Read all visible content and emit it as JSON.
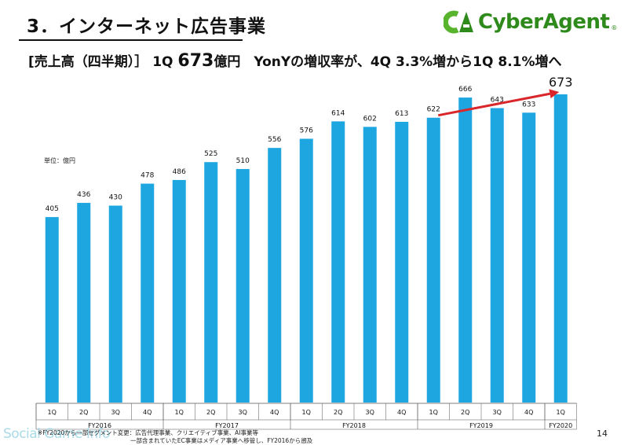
{
  "header": {
    "title": "3．インターネット広告事業",
    "logo_text": "CyberAgent",
    "logo_mark": "CA",
    "logo_registered": "®"
  },
  "subtitle": {
    "part1": "[売上高（四半期）］ 1Q ",
    "value": "673",
    "part2": "億円　YonYの増収率が、4Q 3.3%増から1Q 8.1%増へ"
  },
  "unit_label": "単位：億円",
  "page_number": "14",
  "footnote": {
    "line1": "※FY2020から一部セグメント変更：広告代理事業、クリエイティブ事業、AI事業等",
    "line2": "一部含まれていたEC事業はメディア事業へ移管し、FY2016から遡及"
  },
  "watermark": "Social Game Info",
  "colors": {
    "bar": "#1ea6e0",
    "arrow": "#d9262a",
    "logo": "#2f8a1c"
  },
  "chart_data": {
    "type": "bar",
    "categories": [
      "1Q",
      "2Q",
      "3Q",
      "4Q",
      "1Q",
      "2Q",
      "3Q",
      "4Q",
      "1Q",
      "2Q",
      "3Q",
      "4Q",
      "1Q",
      "2Q",
      "3Q",
      "4Q",
      "1Q"
    ],
    "groups": [
      {
        "label": "FY2016",
        "count": 4
      },
      {
        "label": "FY2017",
        "count": 4
      },
      {
        "label": "FY2018",
        "count": 4
      },
      {
        "label": "FY2019",
        "count": 4
      },
      {
        "label": "FY2020",
        "count": 1
      }
    ],
    "values": [
      405,
      436,
      430,
      478,
      486,
      525,
      510,
      556,
      576,
      614,
      602,
      613,
      622,
      666,
      643,
      633,
      673
    ],
    "value_labels": [
      "405",
      "436",
      "430",
      "478",
      "486",
      "525",
      "510",
      "556",
      "576",
      "614",
      "602",
      "613",
      "622",
      "666",
      "643",
      "633",
      "673"
    ],
    "ylim": [
      0,
      673
    ],
    "highlight_label": "673",
    "arrow": {
      "from_index": 12,
      "to_index": 16
    }
  }
}
